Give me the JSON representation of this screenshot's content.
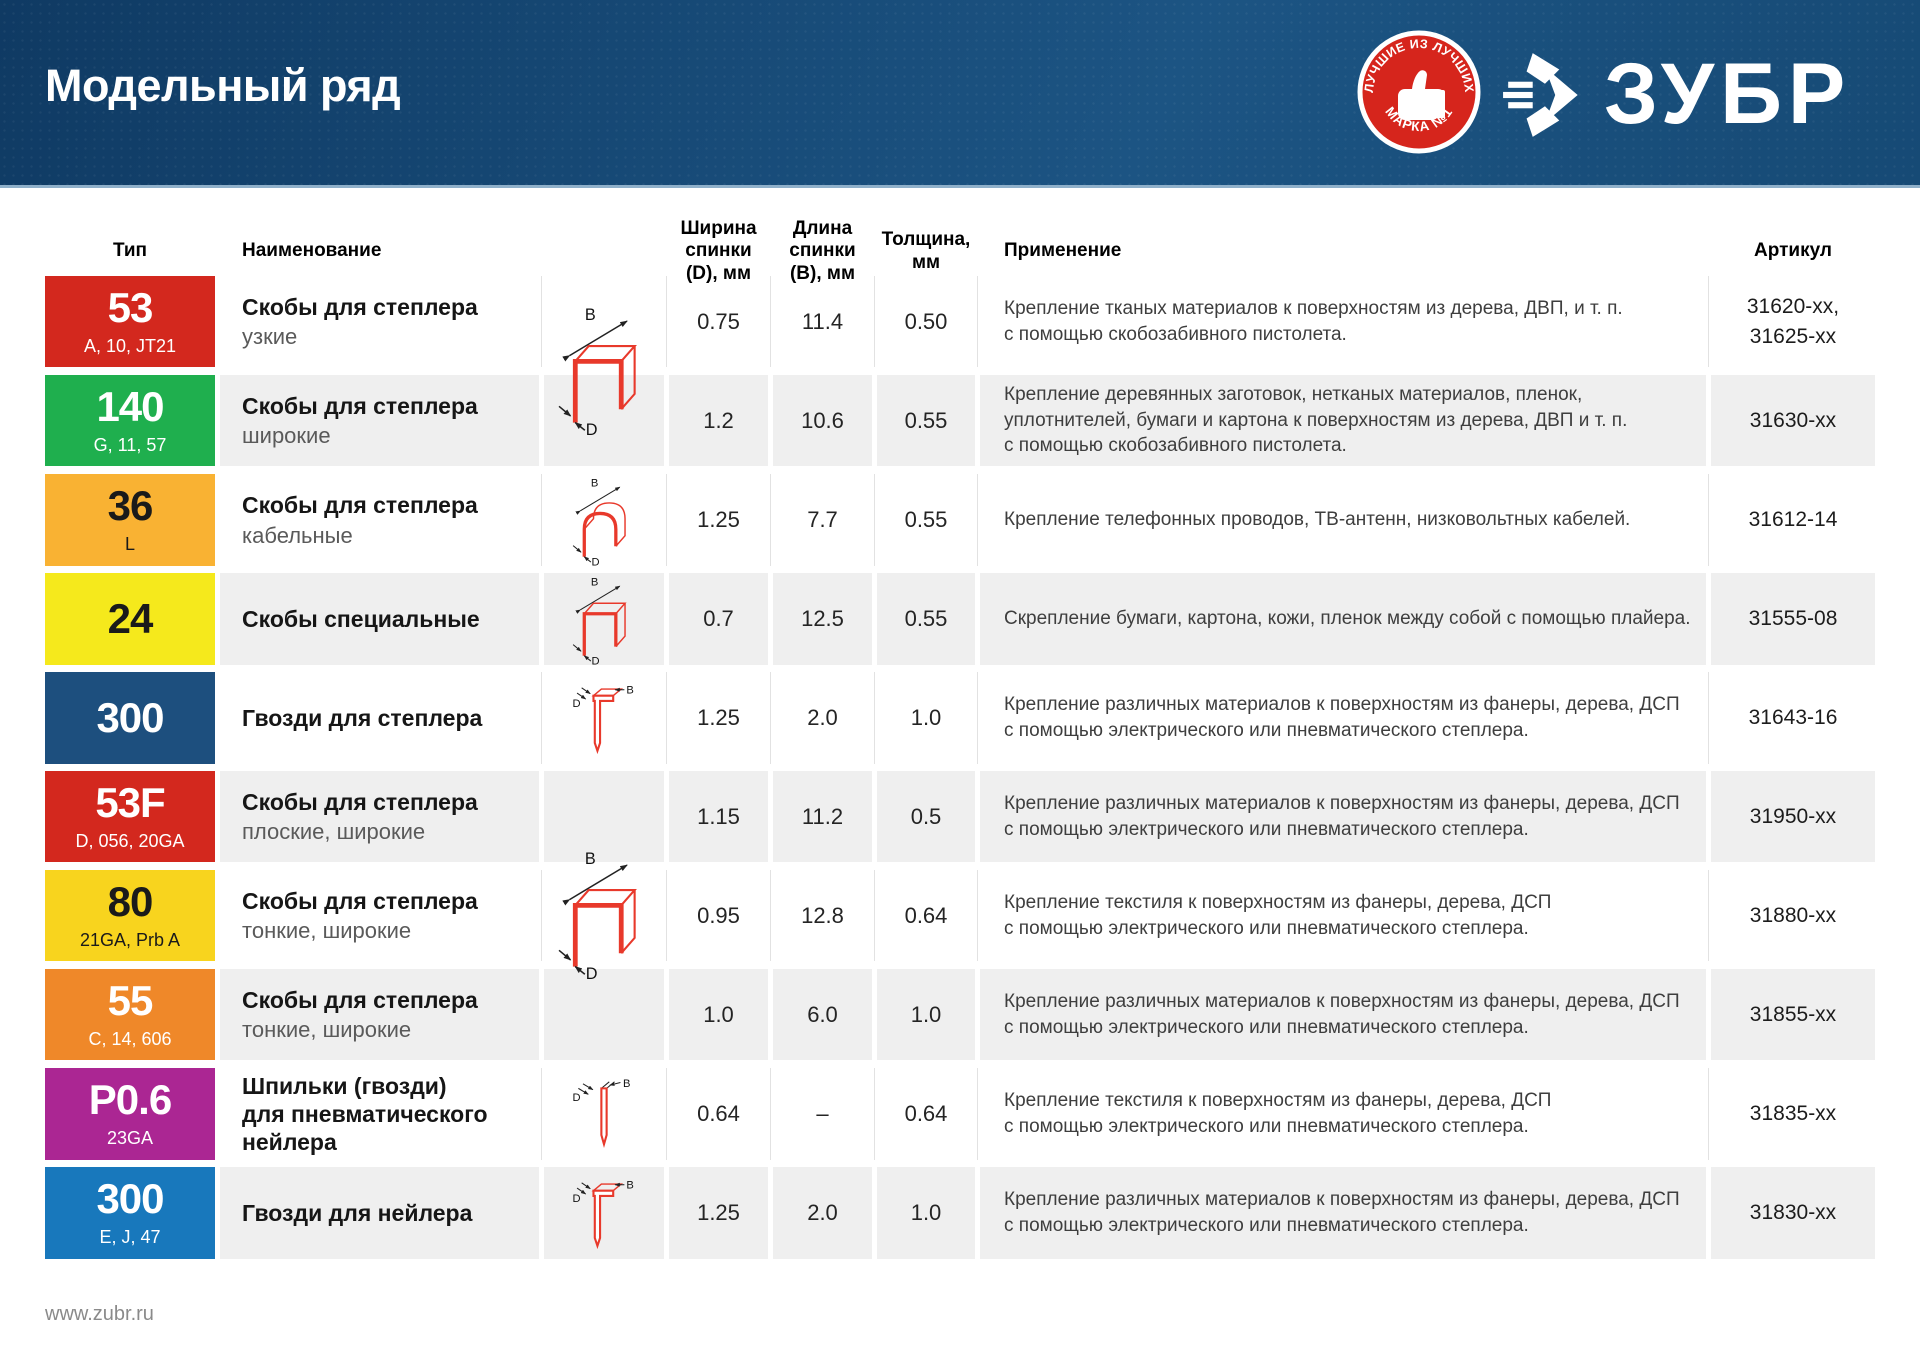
{
  "header": {
    "title": "Модельный ряд",
    "badge_top": "ЛУЧШИЕ ИЗ ЛУЧШИХ",
    "badge_bottom": "МАРКА №1",
    "brand": "ЗУБР"
  },
  "colors": {
    "header_gradient_start": "#0f3a63",
    "header_gradient_end": "#1c5483",
    "header_underline": "#8fb0ca",
    "brand_red": "#d6251c",
    "stripe": "#efefef",
    "separator": "#e2e2e2",
    "diagram_red": "#e8392b"
  },
  "diagram_labels": {
    "length_label": "B",
    "width_label": "D"
  },
  "diagram_groups": [
    {
      "type": "staple"
    },
    {
      "type": "staple"
    }
  ],
  "table": {
    "columns": [
      {
        "label": "Тип"
      },
      {
        "label": "Наименование"
      },
      {
        "label": ""
      },
      {
        "label": "Ширина\nспинки (D), мм"
      },
      {
        "label": "Длина\nспинки (B), мм"
      },
      {
        "label": "Толщина,\nмм"
      },
      {
        "label": "Применение"
      },
      {
        "label": "Артикул"
      }
    ],
    "rows": [
      {
        "type": "53",
        "type_sub": "A, 10, JT21",
        "badge_bg": "#d3281e",
        "badge_fg": "#ffffff",
        "name": "Скобы для степлера",
        "name_sub": "узкие",
        "diagram": "",
        "width": "0.75",
        "length": "11.4",
        "thickness": "0.50",
        "application": "Крепление тканых материалов к поверхностям из дерева, ДВП, и т. п.\nс помощью скобозабивного пистолета.",
        "article": "31620-xx,\n31625-xx"
      },
      {
        "type": "140",
        "type_sub": "G, 11, 57",
        "badge_bg": "#1faf4e",
        "badge_fg": "#ffffff",
        "name": "Скобы для степлера",
        "name_sub": "широкие",
        "diagram": "",
        "width": "1.2",
        "length": "10.6",
        "thickness": "0.55",
        "application": "Крепление деревянных заготовок, нетканых материалов, пленок,\nуплотнителей, бумаги и картона к поверхностям из дерева, ДВП и т. п.\nс помощью скобозабивного пистолета.",
        "article": "31630-xx"
      },
      {
        "type": "36",
        "type_sub": "L",
        "badge_bg": "#f9b233",
        "badge_fg": "#1a1a1a",
        "name": "Скобы для степлера",
        "name_sub": "кабельные",
        "diagram": "staple_round",
        "width": "1.25",
        "length": "7.7",
        "thickness": "0.55",
        "application": "Крепление телефонных проводов, ТВ-антенн, низковольтных кабелей.",
        "article": "31612-14"
      },
      {
        "type": "24",
        "type_sub": "",
        "badge_bg": "#f5e91c",
        "badge_fg": "#1a1a1a",
        "name": "Скобы специальные",
        "name_sub": "",
        "diagram": "staple",
        "width": "0.7",
        "length": "12.5",
        "thickness": "0.55",
        "application": "Скрепление бумаги, картона, кожи, пленок между собой с помощью плайера.",
        "article": "31555-08"
      },
      {
        "type": "300",
        "type_sub": "",
        "badge_bg": "#1d4f7e",
        "badge_fg": "#ffffff",
        "name": "Гвозди для степлера",
        "name_sub": "",
        "diagram": "nail",
        "width": "1.25",
        "length": "2.0",
        "thickness": "1.0",
        "application": "Крепление различных материалов к поверхностям из фанеры, дерева, ДСП\nс помощью электрического или пневматического степлера.",
        "article": "31643-16"
      },
      {
        "type": "53F",
        "type_sub": "D, 056, 20GA",
        "badge_bg": "#d3281e",
        "badge_fg": "#ffffff",
        "name": "Скобы для степлера",
        "name_sub": "плоские, широкие",
        "diagram": "",
        "width": "1.15",
        "length": "11.2",
        "thickness": "0.5",
        "application": "Крепление различных материалов к поверхностям из фанеры, дерева, ДСП\nс помощью электрического или пневматического степлера.",
        "article": "31950-xx"
      },
      {
        "type": "80",
        "type_sub": "21GA, Prb A",
        "badge_bg": "#f8d41e",
        "badge_fg": "#1a1a1a",
        "name": "Скобы для степлера",
        "name_sub": "тонкие, широкие",
        "diagram": "",
        "width": "0.95",
        "length": "12.8",
        "thickness": "0.64",
        "application": "Крепление текстиля к поверхностям из фанеры, дерева, ДСП\nс помощью электрического или пневматического степлера.",
        "article": "31880-xx"
      },
      {
        "type": "55",
        "type_sub": "C, 14, 606",
        "badge_bg": "#ef8829",
        "badge_fg": "#ffffff",
        "name": "Скобы для степлера",
        "name_sub": "тонкие, широкие",
        "diagram": "",
        "width": "1.0",
        "length": "6.0",
        "thickness": "1.0",
        "application": "Крепление различных материалов к поверхностям из фанеры, дерева, ДСП\nс помощью электрического или пневматического степлера.",
        "article": "31855-xx"
      },
      {
        "type": "P0.6",
        "type_sub": "23GA",
        "badge_bg": "#ab2693",
        "badge_fg": "#ffffff",
        "name": "Шпильки (гвозди)\nдля пневматического\nнейлера",
        "name_sub": "",
        "diagram": "pin",
        "width": "0.64",
        "length": "–",
        "thickness": "0.64",
        "application": "Крепление текстиля к поверхностям из фанеры, дерева, ДСП\nс помощью электрического или пневматического степлера.",
        "article": "31835-xx"
      },
      {
        "type": "300",
        "type_sub": "E, J, 47",
        "badge_bg": "#1878bc",
        "badge_fg": "#ffffff",
        "name": "Гвозди для нейлера",
        "name_sub": "",
        "diagram": "nail",
        "width": "1.25",
        "length": "2.0",
        "thickness": "1.0",
        "application": "Крепление различных материалов к поверхностям из фанеры, дерева, ДСП\nс помощью электрического или пневматического степлера.",
        "article": "31830-xx"
      }
    ]
  },
  "footer": {
    "url": "www.zubr.ru"
  }
}
